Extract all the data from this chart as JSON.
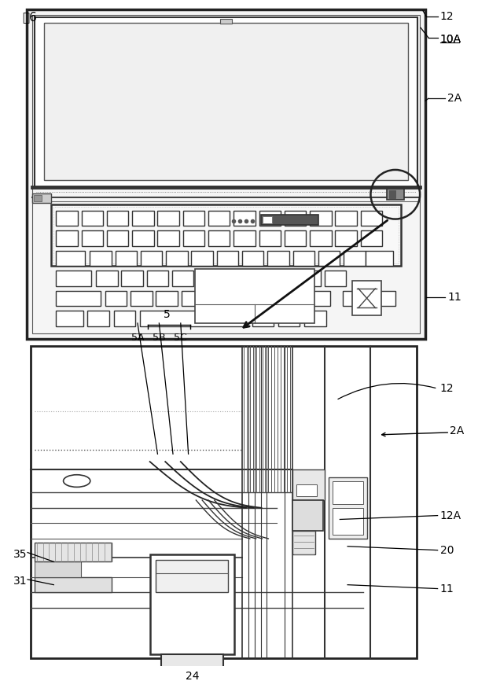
{
  "fig_label": "図6",
  "bg_color": "#ffffff",
  "line_color": "#000000",
  "labels": {
    "12_top": "12",
    "10A": "10A",
    "2A_top": "2A",
    "11_top": "11",
    "5": "5",
    "5A": "5A",
    "5B": "5B",
    "5C": "5C",
    "12_bot": "12",
    "2A_bot": "2A",
    "12A": "12A",
    "20": "20",
    "11_bot": "11",
    "35": "35",
    "31": "31",
    "24": "24"
  }
}
